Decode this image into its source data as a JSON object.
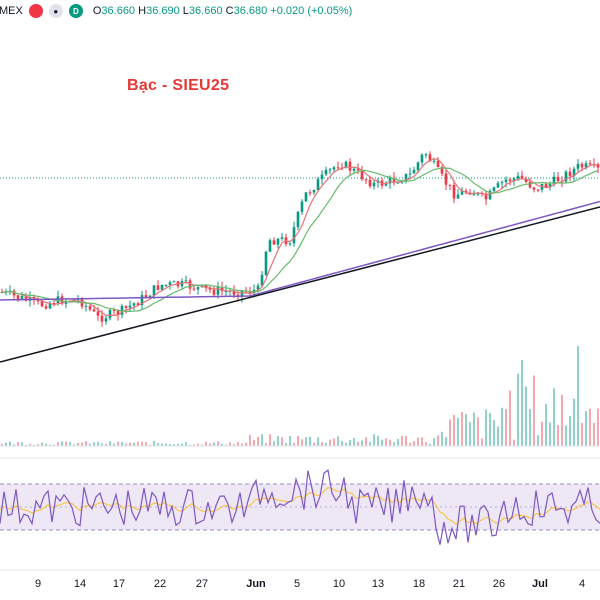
{
  "header": {
    "symbol_fragment": "MEX",
    "d_label": "D",
    "ohlc": {
      "o_label": "O",
      "o_value": "36.660",
      "h_label": "H",
      "h_value": "36.690",
      "l_label": "L",
      "l_value": "36.660",
      "c_label": "C",
      "c_value": "36.680",
      "change": "+0.020 (+0.05%)"
    }
  },
  "chart_title": "Bạc - SIEU25",
  "x_axis": {
    "labels": [
      "9",
      "14",
      "17",
      "22",
      "27",
      "Jun",
      "5",
      "10",
      "13",
      "18",
      "21",
      "26",
      "Jul",
      "4"
    ]
  },
  "colors": {
    "up": "#089981",
    "down": "#f23645",
    "ma_fast": "#e57373",
    "ma_mid": "#66bb6a",
    "ma_slow": "#7e57c2",
    "trendline": "#131722",
    "rsi_line": "#7e57c2",
    "rsi_signal": "#fbc02d",
    "rsi_band": "#ede7f6",
    "title": "#e53935"
  },
  "icons": {
    "close": "close-icon",
    "visibility": "eye-icon"
  }
}
